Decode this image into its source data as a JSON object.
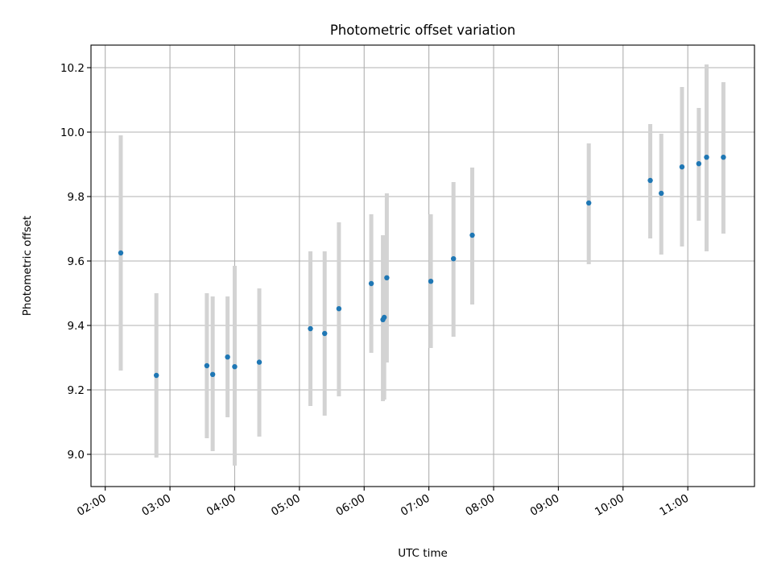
{
  "chart_data": {
    "type": "scatter",
    "title": "Photometric offset variation",
    "xlabel": "UTC time",
    "ylabel": "Photometric offset",
    "x_unit": "hours UTC",
    "xlim": [
      1.78,
      12.03
    ],
    "ylim": [
      8.9,
      10.27
    ],
    "x_ticks": [
      {
        "value": 2,
        "label": "02:00"
      },
      {
        "value": 3,
        "label": "03:00"
      },
      {
        "value": 4,
        "label": "04:00"
      },
      {
        "value": 5,
        "label": "05:00"
      },
      {
        "value": 6,
        "label": "06:00"
      },
      {
        "value": 7,
        "label": "07:00"
      },
      {
        "value": 8,
        "label": "08:00"
      },
      {
        "value": 9,
        "label": "09:00"
      },
      {
        "value": 10,
        "label": "10:00"
      },
      {
        "value": 11,
        "label": "11:00"
      }
    ],
    "y_ticks": [
      {
        "value": 9.0,
        "label": "9.0"
      },
      {
        "value": 9.2,
        "label": "9.2"
      },
      {
        "value": 9.4,
        "label": "9.4"
      },
      {
        "value": 9.6,
        "label": "9.6"
      },
      {
        "value": 9.8,
        "label": "9.8"
      },
      {
        "value": 10.0,
        "label": "10.0"
      },
      {
        "value": 10.2,
        "label": "10.2"
      }
    ],
    "grid": true,
    "point_color": "#1f77b4",
    "errorbar_color": "#d3d3d3",
    "points": [
      {
        "x": 2.24,
        "y": 9.625,
        "ylow": 9.26,
        "yhigh": 9.99
      },
      {
        "x": 2.79,
        "y": 9.245,
        "ylow": 8.99,
        "yhigh": 9.5
      },
      {
        "x": 3.57,
        "y": 9.275,
        "ylow": 9.05,
        "yhigh": 9.5
      },
      {
        "x": 3.66,
        "y": 9.248,
        "ylow": 9.01,
        "yhigh": 9.49
      },
      {
        "x": 3.89,
        "y": 9.302,
        "ylow": 9.115,
        "yhigh": 9.49
      },
      {
        "x": 4.0,
        "y": 9.272,
        "ylow": 8.965,
        "yhigh": 9.585
      },
      {
        "x": 4.38,
        "y": 9.286,
        "ylow": 9.055,
        "yhigh": 9.515
      },
      {
        "x": 5.17,
        "y": 9.39,
        "ylow": 9.15,
        "yhigh": 9.63
      },
      {
        "x": 5.39,
        "y": 9.375,
        "ylow": 9.12,
        "yhigh": 9.63
      },
      {
        "x": 5.61,
        "y": 9.452,
        "ylow": 9.18,
        "yhigh": 9.72
      },
      {
        "x": 6.11,
        "y": 9.53,
        "ylow": 9.315,
        "yhigh": 9.745
      },
      {
        "x": 6.29,
        "y": 9.418,
        "ylow": 9.165,
        "yhigh": 9.68
      },
      {
        "x": 6.31,
        "y": 9.425,
        "ylow": 9.17,
        "yhigh": 9.675
      },
      {
        "x": 6.35,
        "y": 9.548,
        "ylow": 9.285,
        "yhigh": 9.81
      },
      {
        "x": 7.03,
        "y": 9.537,
        "ylow": 9.33,
        "yhigh": 9.745
      },
      {
        "x": 7.38,
        "y": 9.607,
        "ylow": 9.365,
        "yhigh": 9.845
      },
      {
        "x": 7.67,
        "y": 9.68,
        "ylow": 9.465,
        "yhigh": 9.89
      },
      {
        "x": 9.47,
        "y": 9.78,
        "ylow": 9.59,
        "yhigh": 9.965
      },
      {
        "x": 10.42,
        "y": 9.85,
        "ylow": 9.67,
        "yhigh": 10.025
      },
      {
        "x": 10.59,
        "y": 9.81,
        "ylow": 9.62,
        "yhigh": 9.995
      },
      {
        "x": 10.91,
        "y": 9.892,
        "ylow": 9.645,
        "yhigh": 10.14
      },
      {
        "x": 11.17,
        "y": 9.902,
        "ylow": 9.725,
        "yhigh": 10.075
      },
      {
        "x": 11.29,
        "y": 9.922,
        "ylow": 9.63,
        "yhigh": 10.21
      },
      {
        "x": 11.55,
        "y": 9.922,
        "ylow": 9.685,
        "yhigh": 10.155
      }
    ]
  }
}
